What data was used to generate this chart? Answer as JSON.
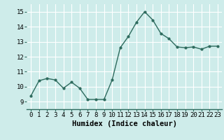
{
  "x": [
    0,
    1,
    2,
    3,
    4,
    5,
    6,
    7,
    8,
    9,
    10,
    11,
    12,
    13,
    14,
    15,
    16,
    17,
    18,
    19,
    20,
    21,
    22,
    23
  ],
  "y": [
    9.4,
    10.4,
    10.55,
    10.45,
    9.9,
    10.3,
    9.9,
    9.15,
    9.15,
    9.15,
    10.45,
    12.6,
    13.35,
    14.3,
    15.0,
    14.45,
    13.55,
    13.2,
    12.65,
    12.6,
    12.65,
    12.5,
    12.7,
    12.7
  ],
  "xlim": [
    -0.5,
    23.5
  ],
  "ylim": [
    8.5,
    15.5
  ],
  "yticks": [
    9,
    10,
    11,
    12,
    13,
    14,
    15
  ],
  "xticks": [
    0,
    1,
    2,
    3,
    4,
    5,
    6,
    7,
    8,
    9,
    10,
    11,
    12,
    13,
    14,
    15,
    16,
    17,
    18,
    19,
    20,
    21,
    22,
    23
  ],
  "xlabel": "Humidex (Indice chaleur)",
  "line_color": "#2e6b5e",
  "marker": "o",
  "marker_size": 2.0,
  "background_color": "#ceecea",
  "grid_color": "#ffffff",
  "tick_fontsize": 6.5,
  "xlabel_fontsize": 7.5,
  "line_width": 1.0
}
